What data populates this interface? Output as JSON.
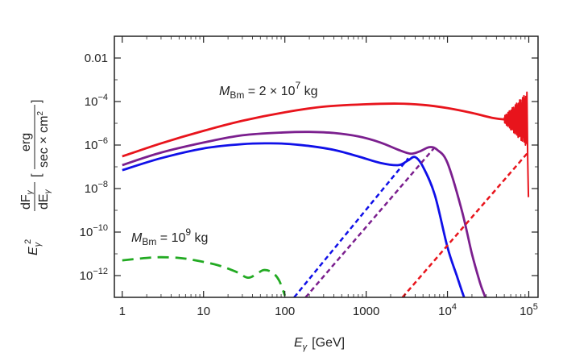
{
  "chart_data": {
    "type": "line",
    "title": "",
    "x_scale": "log",
    "y_scale": "log",
    "xlim": [
      0.8,
      130000
    ],
    "ylim": [
      1e-13,
      0.1
    ],
    "x_ticks": [
      {
        "value": 1,
        "label": "1"
      },
      {
        "value": 10,
        "label": "10"
      },
      {
        "value": 100,
        "label": "100"
      },
      {
        "value": 1000,
        "label": "1000"
      },
      {
        "value": 10000,
        "label": "10",
        "exp": "4"
      },
      {
        "value": 100000,
        "label": "10",
        "exp": "5"
      }
    ],
    "y_ticks": [
      {
        "value": 1e-12,
        "label": "10",
        "exp": "−12"
      },
      {
        "value": 1e-10,
        "label": "10",
        "exp": "−10"
      },
      {
        "value": 1e-08,
        "label": "10",
        "exp": "−8"
      },
      {
        "value": 1e-06,
        "label": "10",
        "exp": "−6"
      },
      {
        "value": 0.0001,
        "label": "10",
        "exp": "−4"
      },
      {
        "value": 0.01,
        "label": "0.01"
      }
    ],
    "xlabel": {
      "base": "E",
      "sub": "γ",
      "unit": "[GeV]"
    },
    "ylabel": {
      "pre": "E",
      "pre_sub": "γ",
      "pre_sup": "2",
      "frac_num": "dF",
      "frac_num_sub": "γ",
      "frac_den": "dE",
      "frac_den_sub": "γ",
      "unit_num": "erg",
      "unit_den": "sec × cm",
      "unit_den_sup": "2"
    },
    "annotations": [
      {
        "name": "annotation-mbm-2e7",
        "prefix": "M",
        "sub": "Bm",
        "text": " = 2 × 10",
        "sup": "7",
        "suffix": " kg"
      },
      {
        "name": "annotation-mbm-1e9",
        "prefix": "M",
        "sub": "Bm",
        "text": " = 10",
        "sup": "9",
        "suffix": " kg"
      }
    ],
    "series": [
      {
        "color": "#e8141c",
        "style": "solid",
        "width": 2.8,
        "x": [
          1,
          3,
          10,
          30,
          100,
          300,
          1000,
          2500,
          5000,
          10000,
          20000,
          35000,
          50000
        ],
        "y": [
          3e-07,
          1.2e-06,
          4.5e-06,
          1.3e-05,
          3.2e-05,
          5.8e-05,
          7.5e-05,
          8e-05,
          7e-05,
          5e-05,
          3e-05,
          1.8e-05,
          1.5e-05
        ]
      },
      {
        "color": "#7b1f8e",
        "style": "solid",
        "width": 2.8,
        "x": [
          1,
          3,
          10,
          30,
          100,
          200,
          400,
          800,
          1500,
          2500,
          3500,
          4500,
          6000,
          7500,
          10000,
          15000,
          20000,
          25000,
          28000,
          30000
        ],
        "y": [
          1.2e-07,
          4.5e-07,
          1.3e-06,
          2.8e-06,
          3.8e-06,
          4e-06,
          3.6e-06,
          2.5e-06,
          1.3e-06,
          6e-07,
          4e-07,
          5e-07,
          8e-07,
          6e-07,
          1.5e-07,
          1e-09,
          1e-11,
          5e-13,
          1.5e-13,
          8e-14
        ]
      },
      {
        "color": "#1010e8",
        "style": "solid",
        "width": 2.8,
        "x": [
          1,
          3,
          10,
          30,
          60,
          100,
          200,
          400,
          800,
          1500,
          2500,
          3300,
          4000,
          5000,
          7000,
          10000,
          13000,
          16000,
          17000
        ],
        "y": [
          7e-08,
          2.5e-07,
          7e-07,
          1.1e-06,
          1.2e-06,
          1.15e-06,
          9e-07,
          6e-07,
          3e-07,
          1.5e-07,
          1.2e-07,
          2e-07,
          2.8e-07,
          1e-07,
          5e-09,
          2e-11,
          1e-12,
          1e-13,
          6e-14
        ]
      },
      {
        "color": "#1010e8",
        "style": "dash",
        "width": 2.5,
        "x": [
          130,
          3300
        ],
        "y": [
          1e-13,
          2.5e-07
        ]
      },
      {
        "color": "#7b1f8e",
        "style": "dash",
        "width": 2.5,
        "x": [
          180,
          7000
        ],
        "y": [
          1e-13,
          8e-07
        ]
      },
      {
        "color": "#e8141c",
        "style": "dash",
        "width": 2.5,
        "x": [
          2800,
          100000
        ],
        "y": [
          1e-13,
          5e-07
        ]
      },
      {
        "color": "#22aa22",
        "style": "longdash",
        "width": 2.8,
        "x": [
          1,
          2,
          3,
          5,
          8,
          15,
          25,
          35,
          45,
          55,
          70,
          85,
          100
        ],
        "y": [
          5e-12,
          6.5e-12,
          7e-12,
          6.5e-12,
          5e-12,
          3e-12,
          1.5e-12,
          8e-13,
          1.2e-12,
          1.8e-12,
          1.4e-12,
          6e-13,
          1.2e-13
        ]
      }
    ]
  }
}
